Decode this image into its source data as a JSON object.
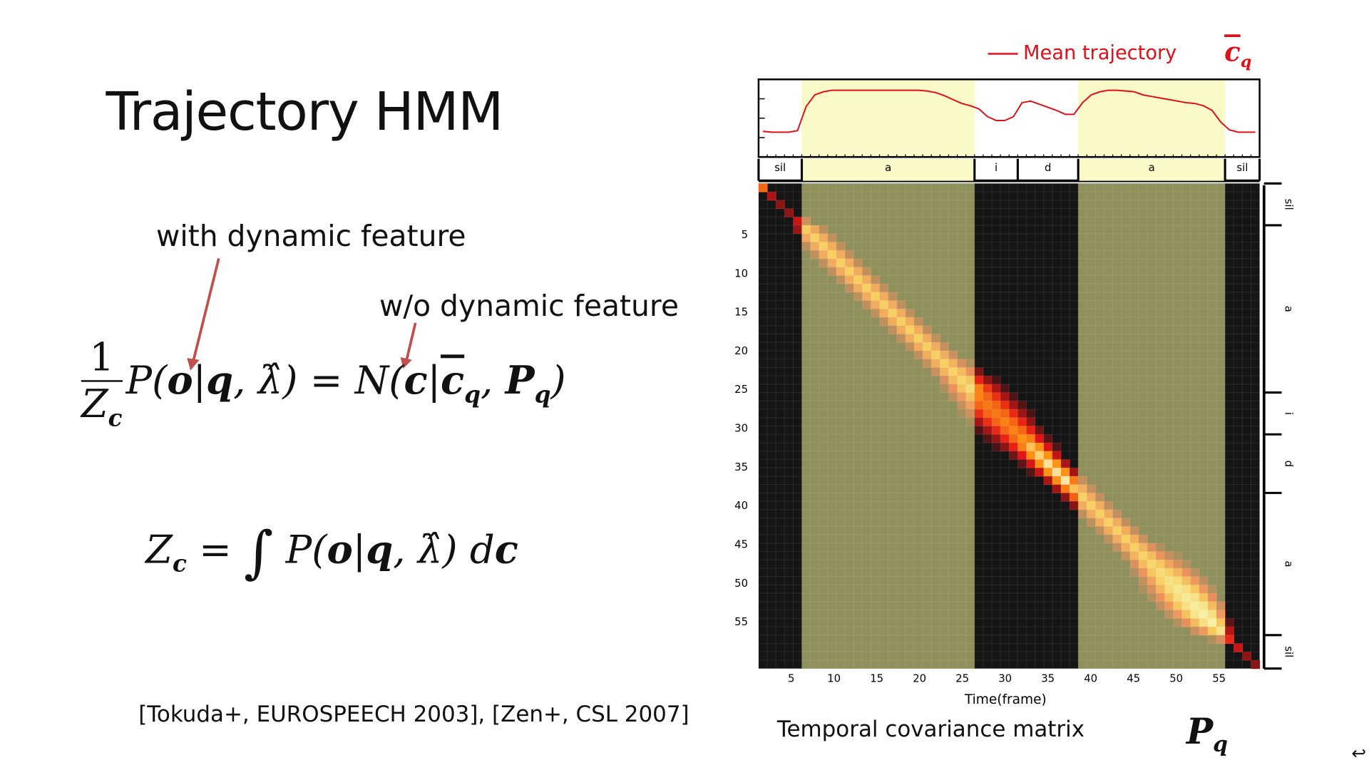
{
  "slide": {
    "title": "Trajectory HMM",
    "annotation_with": "with dynamic feature",
    "annotation_without": "w/o dynamic feature",
    "citation": "[Tokuda+, EUROSPEECH 2003], [Zen+, CSL 2007]",
    "caption": "Temporal  covariance matrix",
    "return_glyph": "↩",
    "arrow_color": "#c0504d",
    "formula1": {
      "num": "1",
      "den": "Z",
      "den_sub": "c",
      "p": "P(",
      "o": "o",
      "bar": "|",
      "q": "q",
      ", ": ", ",
      "lam": "λ̂",
      "close": ")",
      "eq": " = ",
      "n": "N(",
      "c": "c",
      "cbar": "c",
      "cbar_sub": "q",
      "comma": ", ",
      "P": "P",
      "P_sub": "q",
      "end": ")"
    },
    "formula2": {
      "z": "Z",
      "z_sub": "c",
      "eq": " = ",
      "int": "∫",
      "p": " P(",
      "o": "o",
      "bar": "|",
      "q": "q",
      "comma": ", ",
      "lam": "λ̂",
      "close": ")",
      "d": " d",
      "c": "c"
    }
  },
  "chart_data": {
    "type": "heatmap",
    "xlabel": "Time(frame)",
    "legend": "Mean trajectory",
    "legend_symbol": "c",
    "legend_symbol_sub": "q",
    "matrix_symbol": "P",
    "matrix_symbol_sub": "q",
    "frames": 58,
    "x_ticks": [
      5,
      10,
      15,
      20,
      25,
      30,
      35,
      40,
      45,
      50,
      55
    ],
    "y_ticks": [
      5,
      10,
      15,
      20,
      25,
      30,
      35,
      40,
      45,
      50,
      55
    ],
    "segments": [
      {
        "label": "sil",
        "start": 1,
        "end": 5,
        "highlight": false
      },
      {
        "label": "a",
        "start": 6,
        "end": 25,
        "highlight": true
      },
      {
        "label": "i",
        "start": 26,
        "end": 30,
        "highlight": false
      },
      {
        "label": "d",
        "start": 31,
        "end": 37,
        "highlight": false
      },
      {
        "label": "a",
        "start": 38,
        "end": 54,
        "highlight": true
      },
      {
        "label": "sil",
        "start": 55,
        "end": 58,
        "highlight": false
      }
    ],
    "mean_trajectory": [
      0.33,
      0.32,
      0.32,
      0.32,
      0.34,
      0.65,
      0.8,
      0.84,
      0.86,
      0.86,
      0.86,
      0.86,
      0.86,
      0.86,
      0.86,
      0.86,
      0.86,
      0.86,
      0.86,
      0.85,
      0.83,
      0.79,
      0.74,
      0.69,
      0.66,
      0.62,
      0.52,
      0.47,
      0.47,
      0.52,
      0.7,
      0.72,
      0.68,
      0.64,
      0.6,
      0.55,
      0.55,
      0.7,
      0.8,
      0.84,
      0.86,
      0.86,
      0.85,
      0.84,
      0.8,
      0.78,
      0.76,
      0.74,
      0.72,
      0.7,
      0.69,
      0.66,
      0.6,
      0.45,
      0.35,
      0.32,
      0.32,
      0.32
    ],
    "diagonal_variance": [
      0.55,
      0.25,
      0.2,
      0.2,
      0.3,
      0.7,
      0.72,
      0.72,
      0.72,
      0.72,
      0.72,
      0.72,
      0.72,
      0.72,
      0.72,
      0.72,
      0.72,
      0.72,
      0.72,
      0.72,
      0.72,
      0.72,
      0.74,
      0.76,
      0.8,
      0.62,
      0.6,
      0.6,
      0.62,
      0.62,
      0.66,
      0.8,
      0.85,
      0.9,
      0.9,
      0.92,
      0.8,
      0.72,
      0.72,
      0.72,
      0.72,
      0.72,
      0.72,
      0.72,
      0.74,
      0.76,
      0.8,
      0.84,
      0.88,
      0.9,
      0.92,
      0.95,
      0.95,
      0.85,
      0.4,
      0.3,
      0.2,
      0.2
    ],
    "correlation_width": [
      0.5,
      0.5,
      0.5,
      0.5,
      0.6,
      1.1,
      1.2,
      1.2,
      1.2,
      1.2,
      1.2,
      1.2,
      1.2,
      1.2,
      1.2,
      1.2,
      1.2,
      1.2,
      1.2,
      1.2,
      1.2,
      1.3,
      1.4,
      1.5,
      1.8,
      2.2,
      2.4,
      2.4,
      2.2,
      2.0,
      1.8,
      1.6,
      1.4,
      1.3,
      1.3,
      1.2,
      1.2,
      1.2,
      1.2,
      1.2,
      1.2,
      1.2,
      1.2,
      1.3,
      1.4,
      1.6,
      1.9,
      2.2,
      2.5,
      2.6,
      2.6,
      2.2,
      1.6,
      1.0,
      0.6,
      0.5,
      0.5,
      0.5
    ],
    "colors": {
      "trajectory": "#e0101a",
      "highlight": "#fafac8",
      "dark": "#151515",
      "olive_overlay": "rgba(240,240,150,0.56)"
    }
  }
}
